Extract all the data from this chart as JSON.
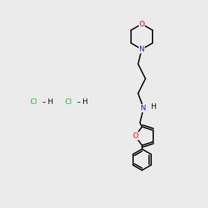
{
  "background_color": "#ebebeb",
  "atom_colors": {
    "C": "#000000",
    "N": "#1a1aff",
    "O": "#ff0000",
    "H": "#000000",
    "Cl": "#1fbb1f"
  },
  "figsize": [
    3.0,
    3.0
  ],
  "dpi": 100,
  "bond_lw": 1.3,
  "font_size": 7.5
}
